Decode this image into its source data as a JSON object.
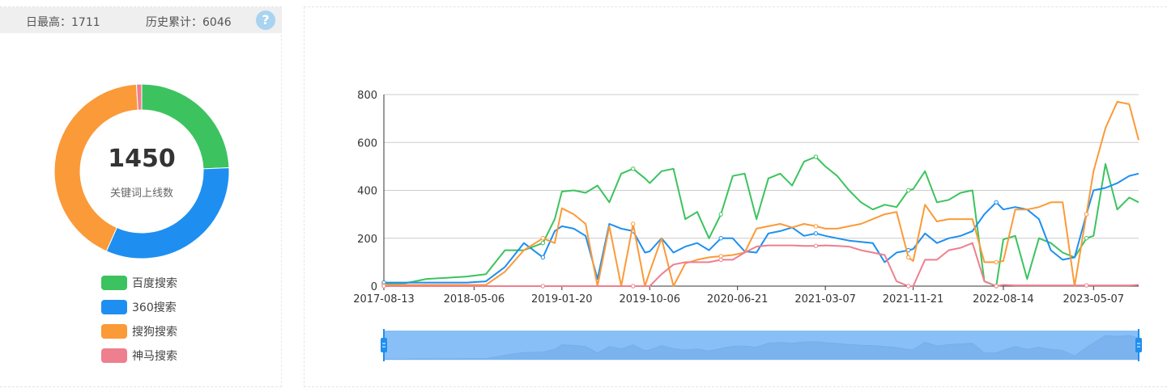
{
  "stats": {
    "daily_max_label": "日最高：",
    "daily_max_value": "1711",
    "total_label": "历史累计：",
    "total_value": "6046",
    "help_glyph": "?"
  },
  "donut": {
    "center_value": "1450",
    "center_label": "关键词上线数",
    "segments": [
      {
        "name": "百度搜索",
        "value": 353,
        "color": "#3cc35f"
      },
      {
        "name": "360搜索",
        "value": 468,
        "color": "#1e8ff0"
      },
      {
        "name": "搜狗搜索",
        "value": 615,
        "color": "#fb9a38"
      },
      {
        "name": "神马搜索",
        "value": 14,
        "color": "#ee7f8e"
      }
    ]
  },
  "legend": [
    {
      "label": "百度搜索",
      "color": "#3cc35f"
    },
    {
      "label": "360搜索",
      "color": "#1e8ff0"
    },
    {
      "label": "搜狗搜索",
      "color": "#fb9a38"
    },
    {
      "label": "神马搜索",
      "color": "#ee7f8e"
    }
  ],
  "chart_data": {
    "type": "line",
    "ylim": [
      0,
      800
    ],
    "yticks": [
      "0",
      "200",
      "400",
      "600",
      "800"
    ],
    "xtick_labels": [
      "2017-08-13",
      "2018-05-06",
      "2019-01-20",
      "2019-10-06",
      "2020-06-21",
      "2021-03-07",
      "2021-11-21",
      "2022-08-14",
      "2023-05-07"
    ],
    "x_range": [
      "2017-08-13",
      "2023-09-17"
    ],
    "grid": true,
    "dataZoom": {
      "start": 0,
      "end": 100
    },
    "series": [
      {
        "name": "百度搜索",
        "color": "#3cc35f",
        "points": [
          [
            "2017-08-13",
            10
          ],
          [
            "2017-10-15",
            12
          ],
          [
            "2017-12-17",
            30
          ],
          [
            "2018-02-18",
            35
          ],
          [
            "2018-04-15",
            40
          ],
          [
            "2018-06-10",
            50
          ],
          [
            "2018-08-05",
            150
          ],
          [
            "2018-09-30",
            150
          ],
          [
            "2018-11-25",
            180
          ],
          [
            "2018-12-30",
            280
          ],
          [
            "2019-01-20",
            395
          ],
          [
            "2019-02-24",
            400
          ],
          [
            "2019-03-31",
            390
          ],
          [
            "2019-05-05",
            420
          ],
          [
            "2019-06-09",
            350
          ],
          [
            "2019-07-14",
            470
          ],
          [
            "2019-08-18",
            490
          ],
          [
            "2019-09-22",
            450
          ],
          [
            "2019-10-06",
            430
          ],
          [
            "2019-11-10",
            480
          ],
          [
            "2019-12-15",
            490
          ],
          [
            "2020-01-19",
            280
          ],
          [
            "2020-02-23",
            310
          ],
          [
            "2020-03-29",
            200
          ],
          [
            "2020-05-03",
            300
          ],
          [
            "2020-06-07",
            460
          ],
          [
            "2020-07-12",
            470
          ],
          [
            "2020-08-16",
            280
          ],
          [
            "2020-09-20",
            450
          ],
          [
            "2020-10-25",
            470
          ],
          [
            "2020-11-29",
            420
          ],
          [
            "2021-01-03",
            520
          ],
          [
            "2021-02-07",
            540
          ],
          [
            "2021-03-07",
            500
          ],
          [
            "2021-04-11",
            460
          ],
          [
            "2021-05-16",
            400
          ],
          [
            "2021-06-20",
            350
          ],
          [
            "2021-07-25",
            320
          ],
          [
            "2021-08-29",
            340
          ],
          [
            "2021-10-03",
            330
          ],
          [
            "2021-11-07",
            400
          ],
          [
            "2021-11-21",
            405
          ],
          [
            "2021-12-26",
            480
          ],
          [
            "2022-01-30",
            350
          ],
          [
            "2022-03-06",
            360
          ],
          [
            "2022-04-10",
            390
          ],
          [
            "2022-05-15",
            400
          ],
          [
            "2022-06-19",
            20
          ],
          [
            "2022-07-24",
            0
          ],
          [
            "2022-08-14",
            195
          ],
          [
            "2022-09-18",
            210
          ],
          [
            "2022-10-23",
            30
          ],
          [
            "2022-11-27",
            200
          ],
          [
            "2023-01-01",
            180
          ],
          [
            "2023-02-05",
            140
          ],
          [
            "2023-03-12",
            120
          ],
          [
            "2023-04-16",
            200
          ],
          [
            "2023-05-07",
            210
          ],
          [
            "2023-06-11",
            510
          ],
          [
            "2023-07-16",
            320
          ],
          [
            "2023-08-20",
            370
          ],
          [
            "2023-09-17",
            350
          ]
        ]
      },
      {
        "name": "360搜索",
        "color": "#1e8ff0",
        "points": [
          [
            "2017-08-13",
            15
          ],
          [
            "2017-10-15",
            15
          ],
          [
            "2017-12-17",
            15
          ],
          [
            "2018-02-18",
            15
          ],
          [
            "2018-04-15",
            15
          ],
          [
            "2018-06-10",
            20
          ],
          [
            "2018-08-05",
            80
          ],
          [
            "2018-09-30",
            180
          ],
          [
            "2018-11-25",
            120
          ],
          [
            "2018-12-30",
            230
          ],
          [
            "2019-01-20",
            250
          ],
          [
            "2019-02-24",
            240
          ],
          [
            "2019-03-31",
            210
          ],
          [
            "2019-05-05",
            30
          ],
          [
            "2019-06-09",
            260
          ],
          [
            "2019-07-14",
            240
          ],
          [
            "2019-08-18",
            230
          ],
          [
            "2019-09-22",
            140
          ],
          [
            "2019-10-06",
            145
          ],
          [
            "2019-11-10",
            200
          ],
          [
            "2019-12-15",
            140
          ],
          [
            "2020-01-19",
            165
          ],
          [
            "2020-02-23",
            180
          ],
          [
            "2020-03-29",
            150
          ],
          [
            "2020-05-03",
            200
          ],
          [
            "2020-06-07",
            200
          ],
          [
            "2020-07-12",
            145
          ],
          [
            "2020-08-16",
            140
          ],
          [
            "2020-09-20",
            220
          ],
          [
            "2020-10-25",
            230
          ],
          [
            "2020-11-29",
            245
          ],
          [
            "2021-01-03",
            210
          ],
          [
            "2021-02-07",
            220
          ],
          [
            "2021-03-07",
            210
          ],
          [
            "2021-04-11",
            200
          ],
          [
            "2021-05-16",
            190
          ],
          [
            "2021-06-20",
            185
          ],
          [
            "2021-07-25",
            180
          ],
          [
            "2021-08-29",
            100
          ],
          [
            "2021-10-03",
            140
          ],
          [
            "2021-11-07",
            150
          ],
          [
            "2021-11-21",
            155
          ],
          [
            "2021-12-26",
            220
          ],
          [
            "2022-01-30",
            180
          ],
          [
            "2022-03-06",
            200
          ],
          [
            "2022-04-10",
            210
          ],
          [
            "2022-05-15",
            230
          ],
          [
            "2022-06-19",
            300
          ],
          [
            "2022-07-24",
            350
          ],
          [
            "2022-08-14",
            320
          ],
          [
            "2022-09-18",
            330
          ],
          [
            "2022-10-23",
            320
          ],
          [
            "2022-11-27",
            280
          ],
          [
            "2023-01-01",
            150
          ],
          [
            "2023-02-05",
            110
          ],
          [
            "2023-03-12",
            120
          ],
          [
            "2023-04-16",
            300
          ],
          [
            "2023-05-07",
            400
          ],
          [
            "2023-06-11",
            410
          ],
          [
            "2023-07-16",
            430
          ],
          [
            "2023-08-20",
            460
          ],
          [
            "2023-09-17",
            470
          ]
        ]
      },
      {
        "name": "搜狗搜索",
        "color": "#fb9a38",
        "points": [
          [
            "2017-08-13",
            5
          ],
          [
            "2017-10-15",
            5
          ],
          [
            "2017-12-17",
            5
          ],
          [
            "2018-02-18",
            5
          ],
          [
            "2018-04-15",
            5
          ],
          [
            "2018-06-10",
            5
          ],
          [
            "2018-08-05",
            60
          ],
          [
            "2018-09-30",
            150
          ],
          [
            "2018-11-25",
            200
          ],
          [
            "2018-12-30",
            180
          ],
          [
            "2019-01-20",
            325
          ],
          [
            "2019-02-24",
            300
          ],
          [
            "2019-03-31",
            260
          ],
          [
            "2019-05-05",
            0
          ],
          [
            "2019-06-09",
            250
          ],
          [
            "2019-07-14",
            0
          ],
          [
            "2019-08-18",
            260
          ],
          [
            "2019-09-22",
            0
          ],
          [
            "2019-10-06",
            60
          ],
          [
            "2019-11-10",
            200
          ],
          [
            "2019-12-15",
            0
          ],
          [
            "2020-01-19",
            95
          ],
          [
            "2020-02-23",
            110
          ],
          [
            "2020-03-29",
            120
          ],
          [
            "2020-05-03",
            125
          ],
          [
            "2020-06-07",
            130
          ],
          [
            "2020-07-12",
            140
          ],
          [
            "2020-08-16",
            240
          ],
          [
            "2020-09-20",
            250
          ],
          [
            "2020-10-25",
            260
          ],
          [
            "2020-11-29",
            245
          ],
          [
            "2021-01-03",
            260
          ],
          [
            "2021-02-07",
            250
          ],
          [
            "2021-03-07",
            240
          ],
          [
            "2021-04-11",
            240
          ],
          [
            "2021-05-16",
            250
          ],
          [
            "2021-06-20",
            260
          ],
          [
            "2021-07-25",
            280
          ],
          [
            "2021-08-29",
            300
          ],
          [
            "2021-10-03",
            310
          ],
          [
            "2021-11-07",
            120
          ],
          [
            "2021-11-21",
            105
          ],
          [
            "2021-12-26",
            340
          ],
          [
            "2022-01-30",
            270
          ],
          [
            "2022-03-06",
            280
          ],
          [
            "2022-04-10",
            280
          ],
          [
            "2022-05-15",
            280
          ],
          [
            "2022-06-19",
            100
          ],
          [
            "2022-07-24",
            100
          ],
          [
            "2022-08-14",
            105
          ],
          [
            "2022-09-18",
            320
          ],
          [
            "2022-10-23",
            320
          ],
          [
            "2022-11-27",
            330
          ],
          [
            "2023-01-01",
            350
          ],
          [
            "2023-02-05",
            350
          ],
          [
            "2023-03-12",
            0
          ],
          [
            "2023-04-16",
            300
          ],
          [
            "2023-05-07",
            480
          ],
          [
            "2023-06-11",
            660
          ],
          [
            "2023-07-16",
            770
          ],
          [
            "2023-08-20",
            760
          ],
          [
            "2023-09-17",
            610
          ]
        ]
      },
      {
        "name": "神马搜索",
        "color": "#ee7f8e",
        "points": [
          [
            "2017-08-13",
            0
          ],
          [
            "2017-10-15",
            0
          ],
          [
            "2017-12-17",
            0
          ],
          [
            "2018-02-18",
            0
          ],
          [
            "2018-04-15",
            0
          ],
          [
            "2018-06-10",
            0
          ],
          [
            "2018-08-05",
            0
          ],
          [
            "2018-09-30",
            0
          ],
          [
            "2018-11-25",
            0
          ],
          [
            "2018-12-30",
            0
          ],
          [
            "2019-01-20",
            0
          ],
          [
            "2019-02-24",
            0
          ],
          [
            "2019-03-31",
            0
          ],
          [
            "2019-05-05",
            0
          ],
          [
            "2019-06-09",
            0
          ],
          [
            "2019-07-14",
            0
          ],
          [
            "2019-08-18",
            0
          ],
          [
            "2019-09-22",
            0
          ],
          [
            "2019-10-06",
            0
          ],
          [
            "2019-11-10",
            50
          ],
          [
            "2019-12-15",
            90
          ],
          [
            "2020-01-19",
            100
          ],
          [
            "2020-02-23",
            100
          ],
          [
            "2020-03-29",
            100
          ],
          [
            "2020-05-03",
            110
          ],
          [
            "2020-06-07",
            110
          ],
          [
            "2020-07-12",
            140
          ],
          [
            "2020-08-16",
            165
          ],
          [
            "2020-09-20",
            170
          ],
          [
            "2020-10-25",
            170
          ],
          [
            "2020-11-29",
            170
          ],
          [
            "2021-01-03",
            168
          ],
          [
            "2021-02-07",
            168
          ],
          [
            "2021-03-07",
            170
          ],
          [
            "2021-04-11",
            168
          ],
          [
            "2021-05-16",
            165
          ],
          [
            "2021-06-20",
            150
          ],
          [
            "2021-07-25",
            140
          ],
          [
            "2021-08-29",
            130
          ],
          [
            "2021-10-03",
            20
          ],
          [
            "2021-11-07",
            0
          ],
          [
            "2021-11-21",
            0
          ],
          [
            "2021-12-26",
            110
          ],
          [
            "2022-01-30",
            110
          ],
          [
            "2022-03-06",
            150
          ],
          [
            "2022-04-10",
            160
          ],
          [
            "2022-05-15",
            180
          ],
          [
            "2022-06-19",
            20
          ],
          [
            "2022-07-24",
            0
          ],
          [
            "2022-08-14",
            5
          ],
          [
            "2022-09-18",
            3
          ],
          [
            "2022-10-23",
            3
          ],
          [
            "2022-11-27",
            3
          ],
          [
            "2023-01-01",
            3
          ],
          [
            "2023-02-05",
            3
          ],
          [
            "2023-03-12",
            3
          ],
          [
            "2023-04-16",
            3
          ],
          [
            "2023-05-07",
            3
          ],
          [
            "2023-06-11",
            3
          ],
          [
            "2023-07-16",
            3
          ],
          [
            "2023-08-20",
            3
          ],
          [
            "2023-09-17",
            5
          ]
        ]
      }
    ]
  }
}
